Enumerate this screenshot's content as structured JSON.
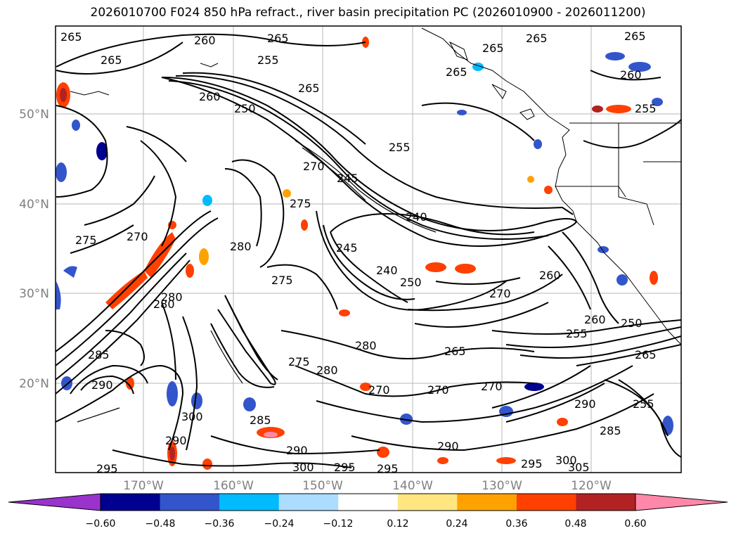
{
  "title": "2026010700 F024 850 hPa refract., river basin precipitation PC (2026010900 - 2026011200)",
  "lat_labels": [
    "50°N",
    "40°N",
    "30°N",
    "20°N"
  ],
  "lon_labels": [
    "170°W",
    "160°W",
    "150°W",
    "140°W",
    "130°W",
    "120°W"
  ],
  "colorbar": {
    "ticks": [
      "−0.60",
      "−0.48",
      "−0.36",
      "−0.24",
      "−0.12",
      "0.12",
      "0.24",
      "0.36",
      "0.48",
      "0.60"
    ],
    "colors": [
      "#9933cc",
      "#000090",
      "#3355cc",
      "#00bbff",
      "#aaddff",
      "#ffffff",
      "#ffe680",
      "#ffa200",
      "#ff4000",
      "#b22222",
      "#ff88aa"
    ],
    "under_color": "#9933cc",
    "over_color": "#ff88aa"
  },
  "contour_labels": [
    {
      "text": "265"
    },
    {
      "text": "260"
    },
    {
      "text": "265"
    },
    {
      "text": "265"
    },
    {
      "text": "265"
    },
    {
      "text": "255"
    },
    {
      "text": "265"
    },
    {
      "text": "265"
    },
    {
      "text": "260"
    },
    {
      "text": "250"
    },
    {
      "text": "265"
    },
    {
      "text": "265"
    },
    {
      "text": "260"
    },
    {
      "text": "255"
    },
    {
      "text": "255"
    },
    {
      "text": "270"
    },
    {
      "text": "245"
    },
    {
      "text": "240"
    },
    {
      "text": "275"
    },
    {
      "text": "270"
    },
    {
      "text": "280"
    },
    {
      "text": "275"
    },
    {
      "text": "240"
    },
    {
      "text": "250"
    },
    {
      "text": "245"
    },
    {
      "text": "270"
    },
    {
      "text": "260"
    },
    {
      "text": "260"
    },
    {
      "text": "255"
    },
    {
      "text": "250"
    },
    {
      "text": "280"
    },
    {
      "text": "280"
    },
    {
      "text": "275"
    },
    {
      "text": "280"
    },
    {
      "text": "265"
    },
    {
      "text": "285"
    },
    {
      "text": "290"
    },
    {
      "text": "270"
    },
    {
      "text": "270"
    },
    {
      "text": "270"
    },
    {
      "text": "290"
    },
    {
      "text": "300"
    },
    {
      "text": "285"
    },
    {
      "text": "290"
    },
    {
      "text": "300"
    },
    {
      "text": "295"
    },
    {
      "text": "295"
    },
    {
      "text": "290"
    },
    {
      "text": "295"
    },
    {
      "text": "300"
    },
    {
      "text": "305"
    },
    {
      "text": "285"
    },
    {
      "text": "290"
    },
    {
      "text": "255"
    },
    {
      "text": "265"
    },
    {
      "text": "275"
    },
    {
      "text": "295"
    },
    {
      "text": "280"
    }
  ]
}
